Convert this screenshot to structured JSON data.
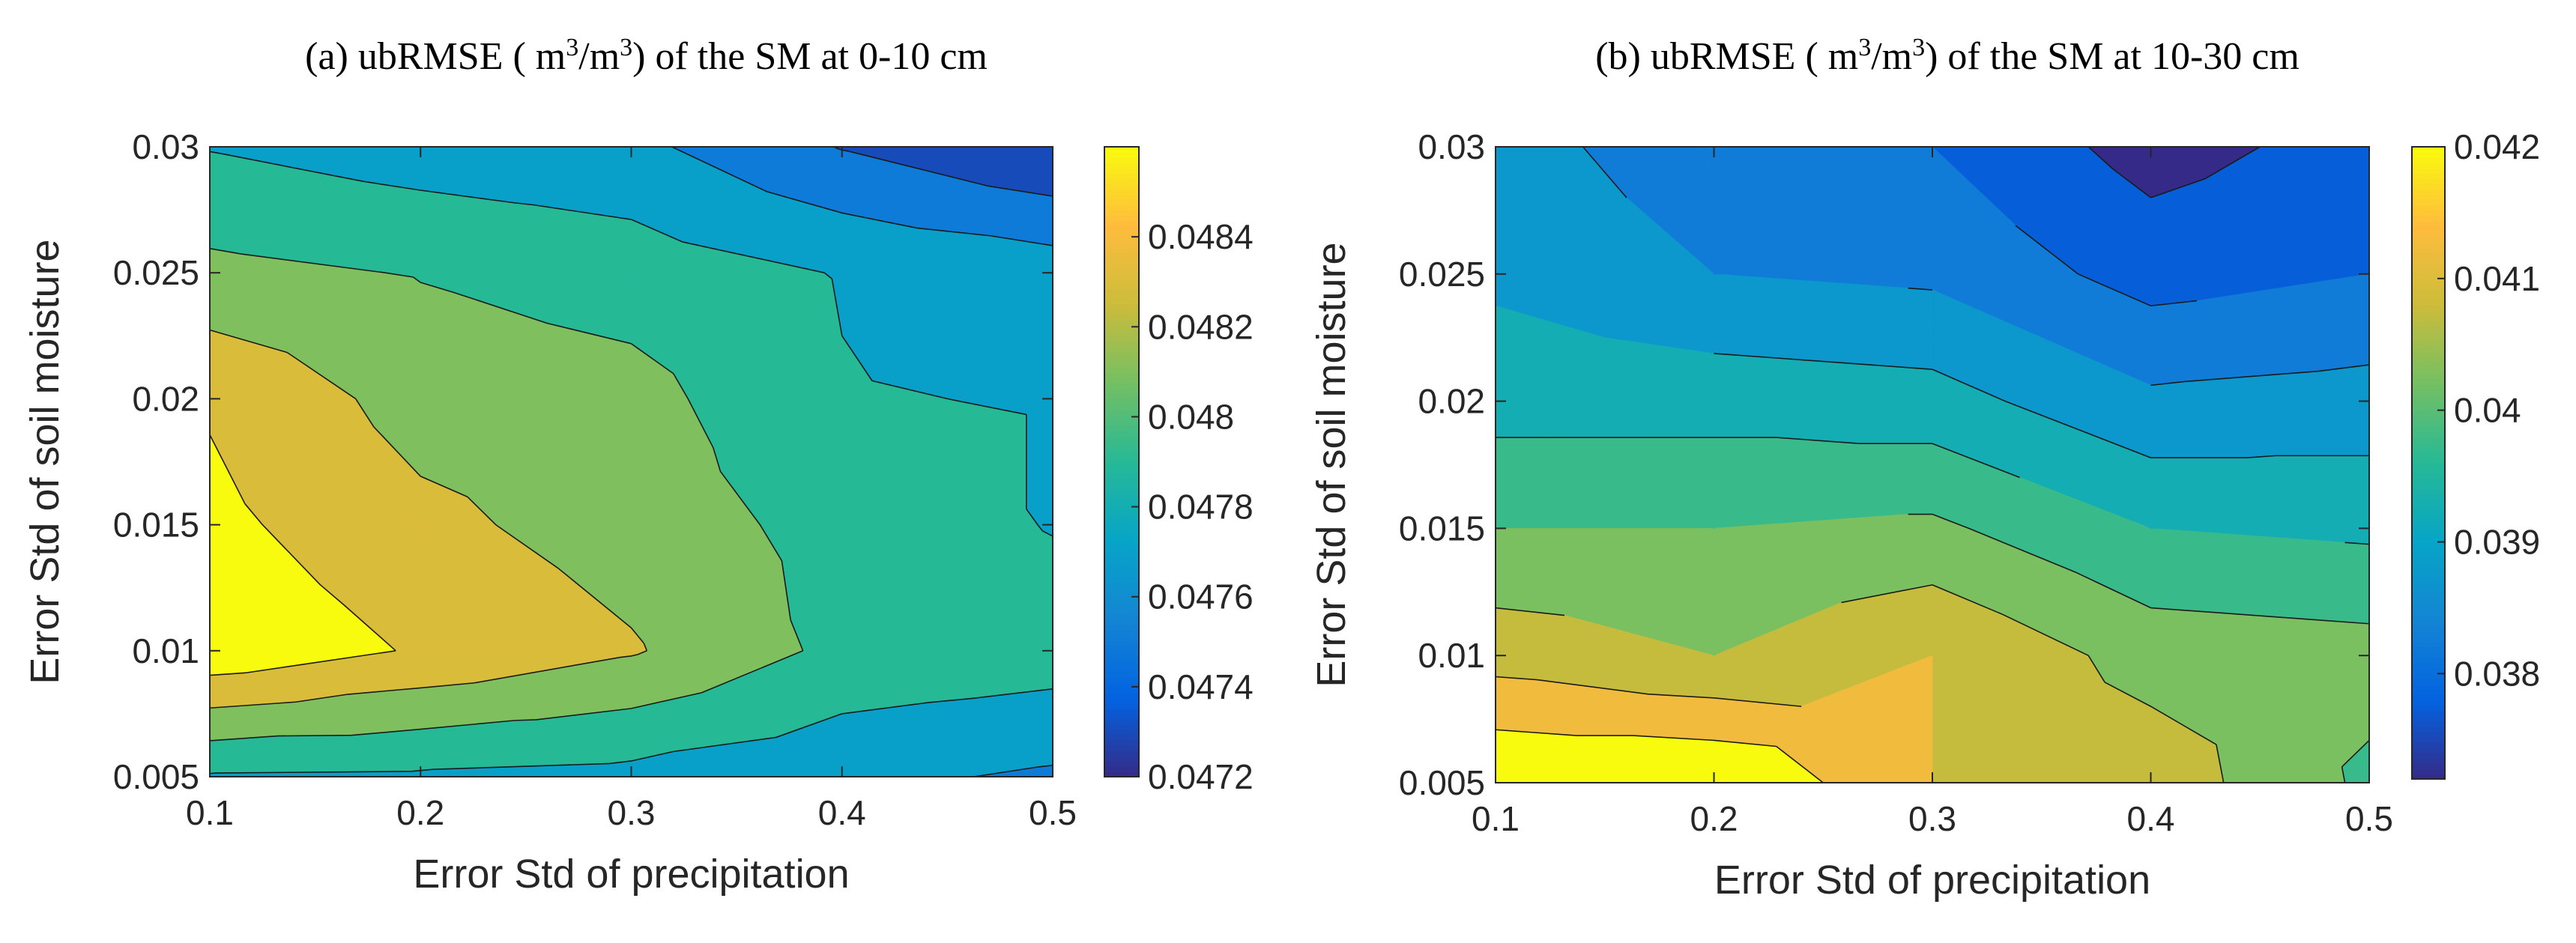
{
  "chart_data": [
    {
      "type": "contour",
      "panel": "(a)",
      "title": "(a) ubRMSE ( m3/m3) of the SM at 0-10 cm",
      "title_parts": [
        "(a) ubRMSE ( m",
        "3",
        "/m",
        "3",
        ") of the SM at 0-10 cm"
      ],
      "xlabel": "Error Std of precipitation",
      "ylabel": "Error Std of soil moisture",
      "xlim": [
        0.1,
        0.5
      ],
      "ylim": [
        0.005,
        0.03
      ],
      "x": [
        0.1,
        0.2,
        0.3,
        0.4,
        0.5
      ],
      "y": [
        0.005,
        0.01,
        0.015,
        0.02,
        0.025,
        0.03
      ],
      "z": [
        [
          0.04778,
          0.04777,
          0.04774,
          0.04765,
          0.04757
        ],
        [
          0.04855,
          0.04838,
          0.04822,
          0.04795,
          0.0479
        ],
        [
          0.04845,
          0.04825,
          0.04811,
          0.04793,
          0.04779
        ],
        [
          0.04838,
          0.04812,
          0.04807,
          0.04781,
          0.04779
        ],
        [
          0.04805,
          0.04799,
          0.04791,
          0.04779,
          0.04771
        ],
        [
          0.04779,
          0.0477,
          0.04765,
          0.04739,
          0.0472
        ]
      ],
      "levels": [
        0.0472,
        0.0474,
        0.0476,
        0.0478,
        0.048,
        0.0482,
        0.0484
      ],
      "clim": [
        0.0472,
        0.0486
      ],
      "xticks": [
        "0.1",
        "0.2",
        "0.3",
        "0.4",
        "0.5"
      ],
      "yticks": [
        "0.005",
        "0.01",
        "0.015",
        "0.02",
        "0.025",
        "0.03"
      ],
      "colorbar_ticks": [
        "0.0472",
        "0.0474",
        "0.0476",
        "0.0478",
        "0.048",
        "0.0482",
        "0.0484"
      ],
      "colormap": "parula"
    },
    {
      "type": "contour",
      "panel": "(b)",
      "title": "(b) ubRMSE ( m3/m3) of the SM at 10-30 cm",
      "title_parts": [
        "(b) ubRMSE ( m",
        "3",
        "/m",
        "3",
        ") of the SM at 10-30 cm"
      ],
      "xlabel": "Error Std of precipitation",
      "ylabel": "Error Std of soil moisture",
      "xlim": [
        0.1,
        0.5
      ],
      "ylim": [
        0.005,
        0.03
      ],
      "x": [
        0.1,
        0.2,
        0.3,
        0.4,
        0.5
      ],
      "y": [
        0.005,
        0.01,
        0.015,
        0.02,
        0.025,
        0.03
      ],
      "z": [
        [
          0.042,
          0.042,
          0.041,
          0.0408,
          0.0399
        ],
        [
          0.0408,
          0.0405,
          0.041,
          0.0403,
          0.0402
        ],
        [
          0.04,
          0.04,
          0.0401,
          0.0395,
          0.0394
        ],
        [
          0.0393,
          0.0393,
          0.0392,
          0.0386,
          0.0387
        ],
        [
          0.0389,
          0.0385,
          0.0384,
          0.0378,
          0.038
        ],
        [
          0.0387,
          0.0382,
          0.038,
          0.0373,
          0.0377
        ]
      ],
      "levels": [
        0.0375,
        0.038,
        0.0385,
        0.039,
        0.0395,
        0.04,
        0.0405,
        0.041,
        0.0415
      ],
      "clim": [
        0.0372,
        0.042
      ],
      "xticks": [
        "0.1",
        "0.2",
        "0.3",
        "0.4",
        "0.5"
      ],
      "yticks": [
        "0.005",
        "0.01",
        "0.015",
        "0.02",
        "0.025",
        "0.03"
      ],
      "colorbar_ticks": [
        "0.038",
        "0.039",
        "0.04",
        "0.041",
        "0.042"
      ],
      "colormap": "parula"
    }
  ]
}
